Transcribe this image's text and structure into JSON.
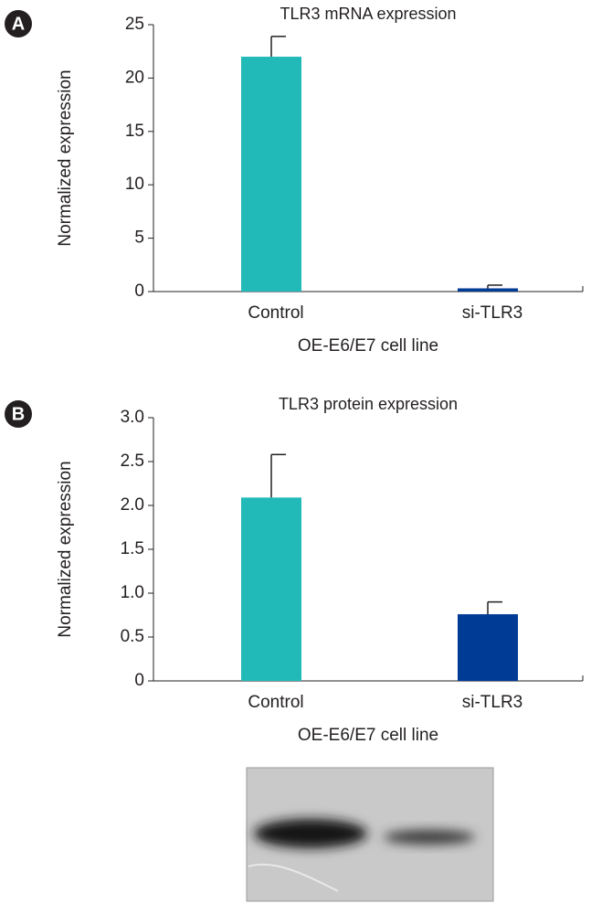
{
  "chart_data": [
    {
      "type": "bar",
      "panel_label": "A",
      "title": "TLR3 mRNA expression",
      "y_label": "Normalized expression",
      "x_label": "OE-E6/E7 cell line",
      "categories": [
        "Control",
        "si-TLR3"
      ],
      "values": [
        22,
        0.3
      ],
      "errors": [
        1.9,
        0.3
      ],
      "colors": [
        "#22b9b9",
        "#003b96"
      ],
      "ylim": [
        0,
        25
      ],
      "yticks": [
        0,
        5,
        10,
        15,
        20,
        25
      ]
    },
    {
      "type": "bar",
      "panel_label": "B",
      "title": "TLR3 protein expression",
      "y_label": "Normalized expression",
      "x_label": "OE-E6/E7 cell line",
      "categories": [
        "Control",
        "si-TLR3"
      ],
      "values": [
        2.09,
        0.76
      ],
      "errors": [
        0.49,
        0.14
      ],
      "colors": [
        "#22b9b9",
        "#003b96"
      ],
      "ylim": [
        0,
        3
      ],
      "yticks": [
        0,
        0.5,
        {
          "value": 1,
          "label": "1.0"
        },
        1.5,
        {
          "value": 2,
          "label": "2.0"
        },
        2.5,
        {
          "value": 3,
          "label": "3.0"
        }
      ]
    }
  ]
}
